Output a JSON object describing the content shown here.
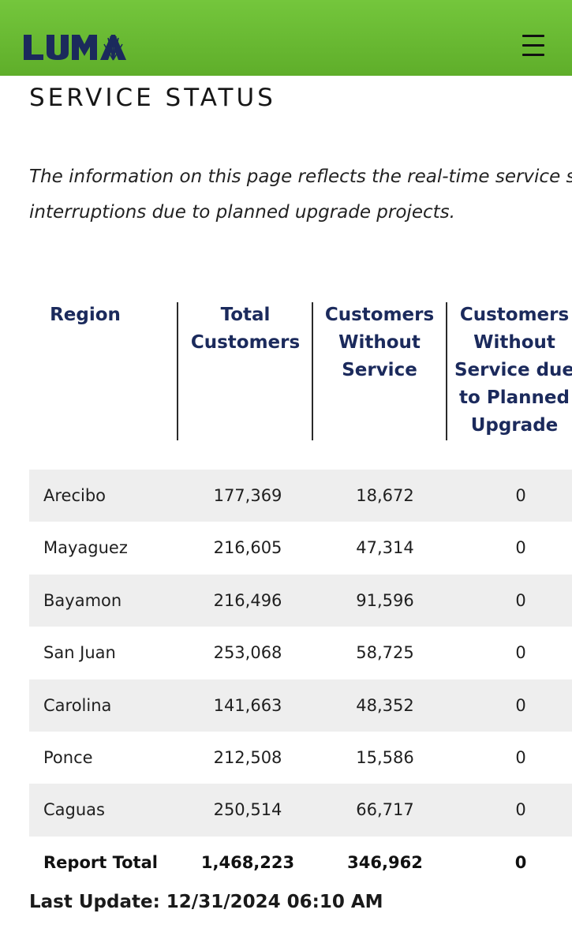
{
  "header": {
    "logo_text": "LUMA",
    "menu_icon": "hamburger-menu-icon",
    "brand_color": "#6cbe35",
    "logo_color": "#1b2a5c"
  },
  "page": {
    "title": "SERVICE STATUS",
    "intro_lines": [
      "The information on this page reflects the real-time service statu",
      "interruptions due to planned upgrade projects."
    ]
  },
  "table": {
    "headers": {
      "region": [
        "Region"
      ],
      "total": [
        "Total",
        "Customers"
      ],
      "without": [
        "Customers",
        "Without",
        "Service"
      ],
      "planned": [
        "Customers",
        "Without",
        "Service due",
        "to Planned",
        "Upgrade"
      ]
    },
    "rows": [
      {
        "region": "Arecibo",
        "total": "177,369",
        "without": "18,672",
        "planned": "0"
      },
      {
        "region": "Mayaguez",
        "total": "216,605",
        "without": "47,314",
        "planned": "0"
      },
      {
        "region": "Bayamon",
        "total": "216,496",
        "without": "91,596",
        "planned": "0"
      },
      {
        "region": "San Juan",
        "total": "253,068",
        "without": "58,725",
        "planned": "0"
      },
      {
        "region": "Carolina",
        "total": "141,663",
        "without": "48,352",
        "planned": "0"
      },
      {
        "region": "Ponce",
        "total": "212,508",
        "without": "15,586",
        "planned": "0"
      },
      {
        "region": "Caguas",
        "total": "250,514",
        "without": "66,717",
        "planned": "0"
      }
    ],
    "total_row": {
      "region": "Report Total",
      "total": "1,468,223",
      "without": "346,962",
      "planned": "0"
    }
  },
  "last_update": "Last Update: 12/31/2024 06:10 AM"
}
